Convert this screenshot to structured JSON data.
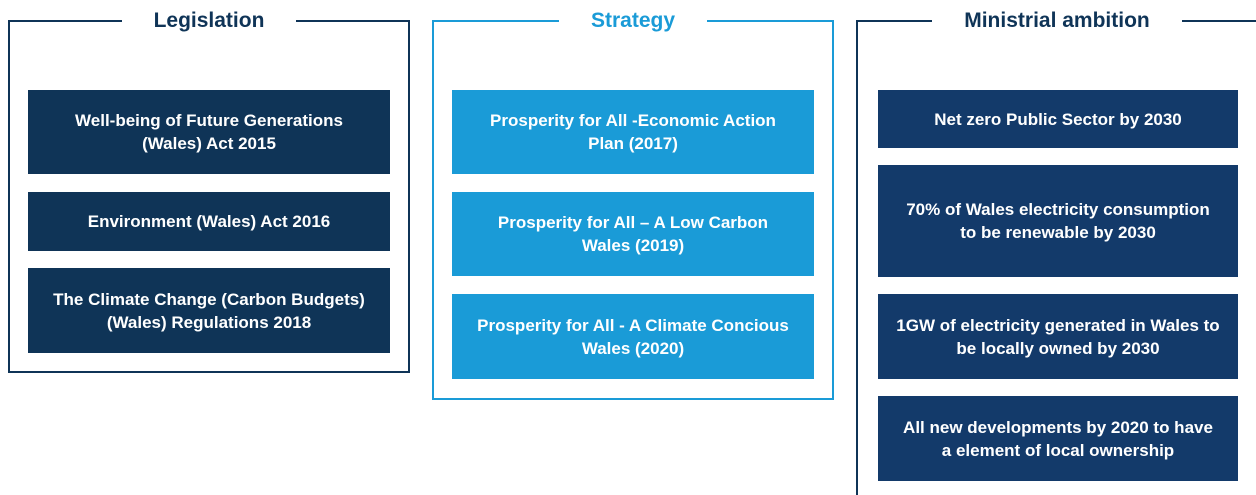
{
  "panels": [
    {
      "title": "Legislation",
      "items": [
        "Well-being of Future Generations (Wales) Act 2015",
        "Environment (Wales) Act 2016",
        "The Climate Change (Carbon Budgets) (Wales) Regulations 2018"
      ]
    },
    {
      "title": "Strategy",
      "items": [
        "Prosperity for All -Economic Action Plan (2017)",
        "Prosperity for All – A Low Carbon Wales (2019)",
        "Prosperity for All - A Climate Concious Wales (2020)"
      ]
    },
    {
      "title": "Ministrial ambition",
      "items": [
        "Net zero Public Sector by 2030",
        "70% of Wales electricity consumption to be renewable by 2030",
        "1GW of electricity generated in Wales to be locally owned by 2030",
        "All new developments by 2020 to have a element of local ownership"
      ]
    }
  ]
}
